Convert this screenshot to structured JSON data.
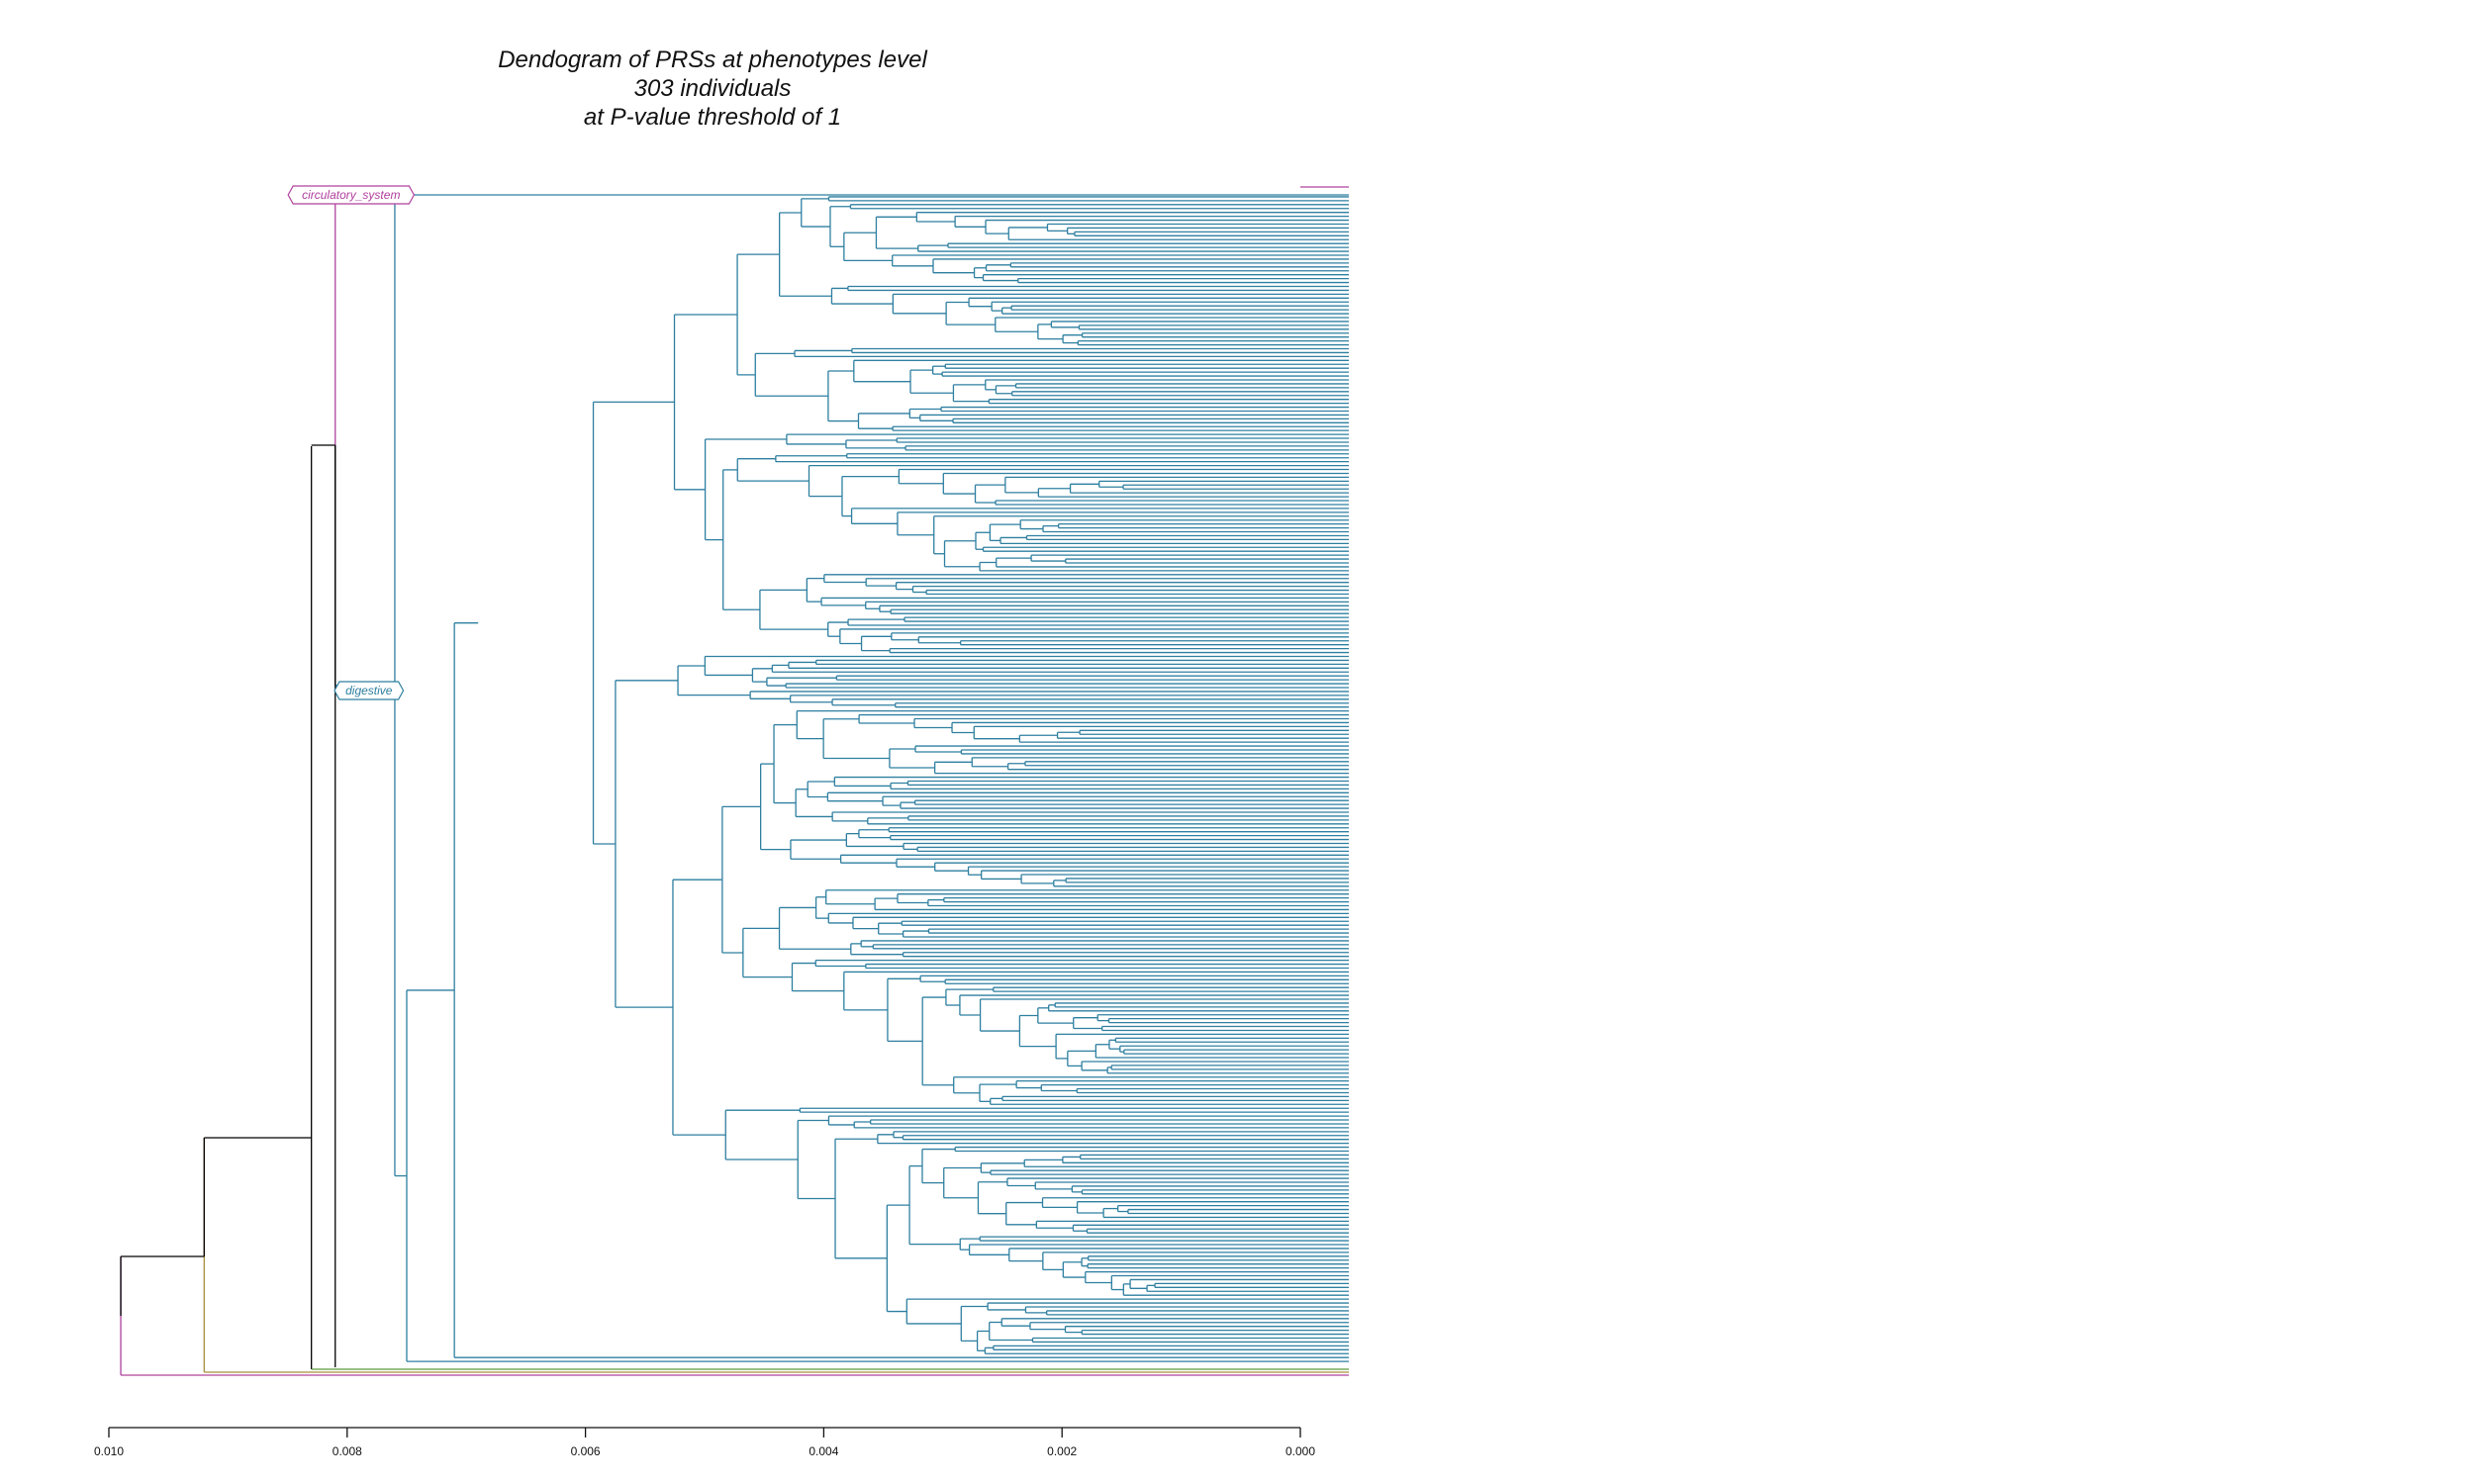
{
  "chart_data": {
    "type": "dendrogram",
    "title": [
      "Dendogram of PRSs at phenotypes level",
      "303 individuals",
      "at P-value threshold of 1"
    ],
    "xlim": [
      0.01,
      0.0
    ],
    "x_ticks": [
      "0.010",
      "0.008",
      "0.006",
      "0.004",
      "0.002",
      "0.000"
    ],
    "leaf_count": 303,
    "groups": [
      {
        "label": "circulatory_system",
        "color": "#b0409e",
        "branch_height": 0.0081
      },
      {
        "label": "digestive",
        "color": "#2e7fa0",
        "branch_height": 0.008
      }
    ],
    "top_merges": [
      {
        "height": 0.0099,
        "color": "#000000"
      },
      {
        "height": 0.0092,
        "color": "#000000"
      },
      {
        "height": 0.0083,
        "color": "#000000"
      },
      {
        "height": 0.0081,
        "color": "#000000"
      },
      {
        "height": 0.0076,
        "color": "#2e7fa0"
      },
      {
        "height": 0.0075,
        "color": "#2e7fa0"
      },
      {
        "height": 0.0071,
        "color": "#2e7fa0"
      },
      {
        "height": 0.0069,
        "color": "#2e7fa0"
      }
    ],
    "branch_colors": {
      "main": "#2e7fa0",
      "group_a": "#b0409e",
      "group_b": "#a88f3a",
      "group_c": "#5c9a3a",
      "root": "#000000"
    }
  }
}
